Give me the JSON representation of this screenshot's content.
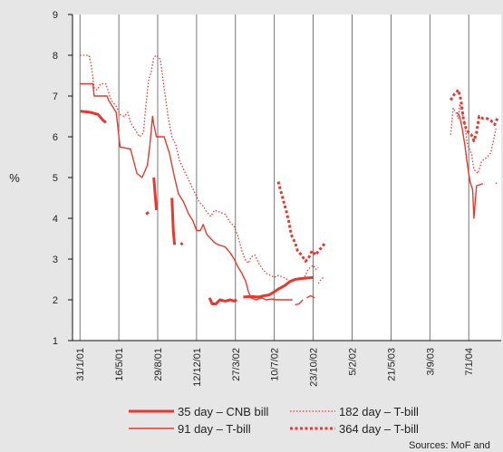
{
  "chart_data": {
    "type": "line",
    "ylabel": "%",
    "ylim": [
      1,
      9
    ],
    "yticks": [
      "9",
      "8",
      "7",
      "6",
      "5",
      "4",
      "3",
      "2",
      "1"
    ],
    "x_tick_labels": [
      "31/1/01",
      "16/5/01",
      "29/8/01",
      "12/12/01",
      "27/3/02",
      "10/7/02",
      "23/10/02",
      "5/2/02",
      "21/5/03",
      "3/9/03",
      "7/1/04"
    ],
    "grid": "vertical",
    "legend": "bottom",
    "series": [
      {
        "name": "35 day – CNB bill",
        "color": "#e8382d",
        "style": "thick",
        "segments": [
          [
            [
              0.02,
              6.63
            ],
            [
              0.4,
              6.6
            ],
            [
              0.7,
              6.55
            ],
            [
              0.9,
              6.4
            ],
            [
              1.0,
              6.35
            ]
          ],
          [
            [
              2.55,
              4.1
            ],
            [
              2.65,
              4.15
            ]
          ],
          [
            [
              2.85,
              5.0
            ],
            [
              2.95,
              4.2
            ]
          ],
          [
            [
              3.55,
              4.5
            ],
            [
              3.6,
              3.7
            ],
            [
              3.65,
              3.35
            ]
          ],
          [
            [
              3.9,
              3.35
            ],
            [
              3.95,
              3.4
            ]
          ],
          [
            [
              5.0,
              2.05
            ],
            [
              5.1,
              1.9
            ],
            [
              5.25,
              1.9
            ],
            [
              5.4,
              2.0
            ],
            [
              5.6,
              1.97
            ],
            [
              5.8,
              2.0
            ],
            [
              5.95,
              1.97
            ],
            [
              6.05,
              2.0
            ]
          ],
          [
            [
              6.3,
              2.07
            ],
            [
              6.6,
              2.08
            ],
            [
              6.9,
              2.07
            ],
            [
              7.1,
              2.1
            ],
            [
              7.3,
              2.12
            ],
            [
              7.5,
              2.2
            ],
            [
              7.7,
              2.28
            ],
            [
              7.9,
              2.35
            ],
            [
              8.1,
              2.45
            ],
            [
              8.3,
              2.5
            ],
            [
              8.5,
              2.52
            ],
            [
              8.7,
              2.53
            ],
            [
              9.0,
              2.55
            ]
          ]
        ]
      },
      {
        "name": "91 day – T-bill",
        "color": "#e8382d",
        "style": "solid",
        "segments": [
          [
            [
              0.0,
              7.3
            ],
            [
              0.5,
              7.3
            ],
            [
              0.55,
              7.0
            ],
            [
              1.05,
              7.0
            ],
            [
              1.1,
              6.9
            ],
            [
              1.4,
              6.6
            ],
            [
              1.55,
              5.75
            ],
            [
              1.95,
              5.7
            ],
            [
              2.2,
              5.1
            ],
            [
              2.4,
              5.0
            ],
            [
              2.6,
              5.3
            ],
            [
              2.7,
              5.8
            ],
            [
              2.8,
              6.5
            ],
            [
              2.85,
              6.3
            ],
            [
              2.95,
              6.0
            ],
            [
              3.25,
              6.0
            ],
            [
              3.45,
              5.6
            ],
            [
              3.65,
              5.0
            ],
            [
              3.8,
              4.6
            ],
            [
              4.0,
              4.4
            ],
            [
              4.2,
              4.1
            ],
            [
              4.35,
              3.95
            ],
            [
              4.5,
              3.7
            ],
            [
              4.65,
              3.7
            ],
            [
              4.75,
              3.85
            ],
            [
              4.9,
              3.6
            ],
            [
              5.05,
              3.5
            ],
            [
              5.2,
              3.4
            ],
            [
              5.35,
              3.35
            ],
            [
              5.6,
              3.3
            ],
            [
              5.8,
              3.15
            ],
            [
              5.95,
              3.0
            ],
            [
              6.1,
              2.8
            ],
            [
              6.25,
              2.65
            ],
            [
              6.4,
              2.45
            ],
            [
              6.5,
              2.2
            ],
            [
              6.6,
              2.05
            ],
            [
              6.8,
              2.0
            ],
            [
              7.0,
              2.05
            ],
            [
              7.2,
              2.0
            ],
            [
              7.4,
              2.02
            ],
            [
              7.6,
              2.0
            ],
            [
              7.8,
              2.0
            ],
            [
              8.0,
              2.0
            ],
            [
              8.2,
              2.0
            ]
          ],
          [
            [
              8.3,
              1.88
            ],
            [
              8.45,
              1.9
            ],
            [
              8.6,
              2.0
            ]
          ],
          [
            [
              8.75,
              2.05
            ],
            [
              8.9,
              2.1
            ],
            [
              9.05,
              2.05
            ]
          ],
          [
            [
              14.55,
              6.6
            ],
            [
              14.65,
              6.5
            ],
            [
              14.75,
              6.2
            ],
            [
              14.85,
              5.8
            ],
            [
              14.95,
              5.3
            ],
            [
              15.05,
              4.9
            ],
            [
              15.15,
              4.7
            ],
            [
              15.2,
              4.0
            ],
            [
              15.3,
              4.8
            ],
            [
              15.55,
              4.85
            ]
          ]
        ]
      },
      {
        "name": "182 day – T-bill",
        "color": "#e8382d",
        "style": "dotted",
        "segments": [
          [
            [
              0.0,
              8.0
            ],
            [
              0.35,
              8.0
            ],
            [
              0.45,
              7.7
            ],
            [
              0.55,
              7.2
            ],
            [
              0.65,
              7.15
            ],
            [
              0.8,
              7.3
            ],
            [
              1.0,
              7.3
            ],
            [
              1.2,
              6.9
            ],
            [
              1.4,
              6.75
            ],
            [
              1.55,
              6.55
            ],
            [
              1.7,
              6.5
            ],
            [
              1.85,
              6.6
            ],
            [
              1.95,
              6.35
            ],
            [
              2.1,
              6.2
            ],
            [
              2.3,
              6.0
            ],
            [
              2.45,
              6.1
            ],
            [
              2.55,
              6.8
            ],
            [
              2.65,
              7.4
            ],
            [
              2.75,
              7.6
            ],
            [
              2.85,
              7.95
            ],
            [
              2.95,
              8.0
            ],
            [
              3.1,
              7.9
            ],
            [
              3.25,
              7.2
            ],
            [
              3.4,
              6.5
            ],
            [
              3.55,
              6.0
            ],
            [
              3.7,
              5.8
            ],
            [
              3.85,
              5.4
            ],
            [
              4.0,
              5.2
            ],
            [
              4.15,
              5.0
            ],
            [
              4.3,
              4.8
            ],
            [
              4.45,
              4.6
            ],
            [
              4.6,
              4.4
            ],
            [
              4.75,
              4.3
            ],
            [
              4.9,
              4.15
            ],
            [
              5.05,
              4.05
            ],
            [
              5.2,
              4.2
            ],
            [
              5.4,
              4.15
            ],
            [
              5.6,
              4.1
            ],
            [
              5.8,
              3.9
            ],
            [
              5.95,
              3.8
            ],
            [
              6.1,
              3.55
            ],
            [
              6.25,
              3.2
            ],
            [
              6.4,
              2.95
            ],
            [
              6.5,
              2.9
            ],
            [
              6.6,
              3.05
            ],
            [
              6.75,
              3.1
            ],
            [
              6.9,
              2.9
            ],
            [
              7.05,
              2.75
            ],
            [
              7.2,
              2.65
            ],
            [
              7.35,
              2.6
            ],
            [
              7.5,
              2.55
            ],
            [
              7.65,
              2.6
            ],
            [
              7.85,
              2.55
            ],
            [
              8.0,
              2.5
            ]
          ],
          [
            [
              8.6,
              2.5
            ],
            [
              8.7,
              2.6
            ],
            [
              8.8,
              2.75
            ],
            [
              8.9,
              2.8
            ],
            [
              9.0,
              2.85
            ],
            [
              9.1,
              2.75
            ],
            [
              9.2,
              2.8
            ]
          ],
          [
            [
              9.2,
              2.4
            ],
            [
              9.3,
              2.5
            ],
            [
              9.4,
              2.55
            ]
          ],
          [
            [
              14.3,
              6.05
            ],
            [
              14.4,
              6.7
            ],
            [
              14.5,
              6.6
            ],
            [
              14.6,
              6.45
            ],
            [
              14.65,
              6.8
            ],
            [
              14.75,
              6.6
            ],
            [
              14.85,
              6.3
            ],
            [
              14.95,
              5.8
            ],
            [
              15.1,
              5.6
            ],
            [
              15.2,
              5.2
            ],
            [
              15.35,
              5.1
            ],
            [
              15.5,
              5.4
            ],
            [
              15.7,
              5.5
            ],
            [
              15.85,
              5.6
            ],
            [
              15.95,
              5.9
            ],
            [
              16.05,
              6.2
            ]
          ],
          [
            [
              16.05,
              4.85
            ],
            [
              16.1,
              4.9
            ]
          ]
        ]
      },
      {
        "name": "364 day – T-bill",
        "color": "#e8382d",
        "style": "dashed-thick",
        "segments": [
          [
            [
              7.65,
              4.9
            ],
            [
              7.8,
              4.55
            ],
            [
              7.95,
              4.2
            ],
            [
              8.05,
              3.95
            ],
            [
              8.15,
              3.6
            ],
            [
              8.3,
              3.4
            ],
            [
              8.4,
              3.2
            ],
            [
              8.55,
              3.1
            ],
            [
              8.7,
              2.95
            ],
            [
              8.8,
              3.0
            ],
            [
              8.95,
              3.2
            ],
            [
              9.1,
              3.1
            ],
            [
              9.2,
              3.2
            ],
            [
              9.35,
              3.3
            ],
            [
              9.45,
              3.4
            ]
          ],
          [
            [
              14.3,
              6.9
            ],
            [
              14.45,
              7.05
            ],
            [
              14.6,
              7.15
            ],
            [
              14.7,
              6.9
            ],
            [
              14.8,
              6.4
            ],
            [
              14.9,
              6.2
            ],
            [
              15.0,
              6.1
            ],
            [
              15.1,
              6.05
            ],
            [
              15.2,
              5.9
            ],
            [
              15.3,
              6.1
            ],
            [
              15.4,
              6.5
            ],
            [
              15.55,
              6.45
            ],
            [
              15.7,
              6.45
            ],
            [
              15.85,
              6.4
            ],
            [
              16.0,
              6.3
            ],
            [
              16.1,
              6.45
            ]
          ]
        ]
      }
    ]
  },
  "source_note": "Sources: MoF and"
}
